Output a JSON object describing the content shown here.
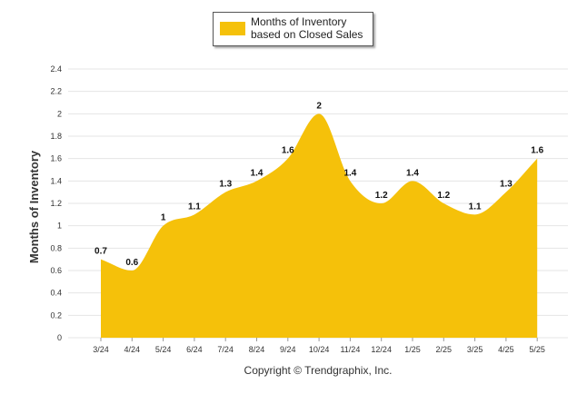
{
  "legend": {
    "label": "Months of Inventory based on Closed Sales"
  },
  "footer": {
    "copyright": "Copyright © Trendgraphix, Inc."
  },
  "colors": {
    "series": "#F5C10A",
    "grid": "#e4e4e4",
    "axis_text": "#333333"
  },
  "chart_data": {
    "type": "area",
    "title": "",
    "xlabel": "",
    "ylabel": "Months of Inventory",
    "ylim": [
      0,
      2.4
    ],
    "yticks": [
      "0",
      "0.2",
      "0.4",
      "0.6",
      "0.8",
      "1",
      "1.2",
      "1.4",
      "1.6",
      "1.8",
      "2",
      "2.2",
      "2.4"
    ],
    "grid": true,
    "legend_position": "top-center",
    "smooth": true,
    "categories": [
      "3/24",
      "4/24",
      "5/24",
      "6/24",
      "7/24",
      "8/24",
      "9/24",
      "10/24",
      "11/24",
      "12/24",
      "1/25",
      "2/25",
      "3/25",
      "4/25",
      "5/25"
    ],
    "series": [
      {
        "name": "Months of Inventory based on Closed Sales",
        "values": [
          0.7,
          0.6,
          1,
          1.1,
          1.3,
          1.4,
          1.6,
          2,
          1.4,
          1.2,
          1.4,
          1.2,
          1.1,
          1.3,
          1.6
        ],
        "labels": [
          "0.7",
          "0.6",
          "1",
          "1.1",
          "1.3",
          "1.4",
          "1.6",
          "2",
          "1.4",
          "1.2",
          "1.4",
          "1.2",
          "1.1",
          "1.3",
          "1.6"
        ]
      }
    ]
  }
}
